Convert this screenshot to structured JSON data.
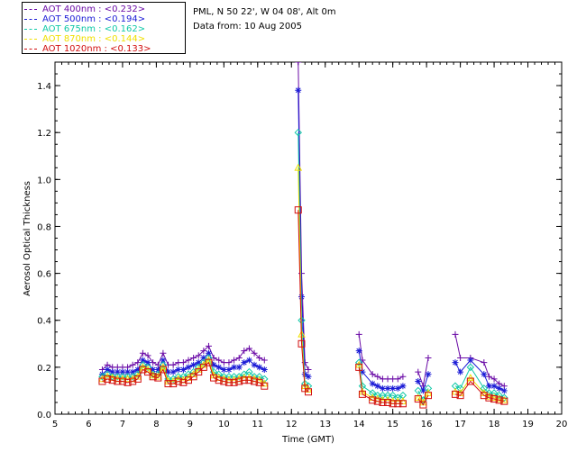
{
  "legend": [
    {
      "label": "AOT  400nm : <0.232>",
      "color": "#6a0aa6"
    },
    {
      "label": "AOT  500nm : <0.194>",
      "color": "#1b1bd6"
    },
    {
      "label": "AOT  675nm : <0.162>",
      "color": "#10c8a8"
    },
    {
      "label": "AOT  870nm : <0.144>",
      "color": "#f0e000"
    },
    {
      "label": "AOT 1020nm : <0.133>",
      "color": "#d21010"
    }
  ],
  "info": {
    "station": "PML, N 50 22', W 04 08', Alt 0m",
    "date": "Data from: 10 Aug 2005"
  },
  "chart_data": {
    "type": "scatter",
    "xlabel": "Time (GMT)",
    "ylabel": "Aerosol Optical Thickness",
    "xlim": [
      5,
      20
    ],
    "ylim": [
      0,
      1.5
    ],
    "xticks": [
      5,
      6,
      7,
      8,
      9,
      10,
      11,
      12,
      13,
      14,
      15,
      16,
      17,
      18,
      19,
      20
    ],
    "yticks": [
      0.0,
      0.2,
      0.4,
      0.6,
      0.8,
      1.0,
      1.2,
      1.4
    ],
    "grid": false,
    "legend_position": "top-left",
    "series": [
      {
        "wavelength": "400nm",
        "marker": "plus",
        "color": "#6a0aa6",
        "x": [
          6.4,
          6.55,
          6.7,
          6.85,
          7.0,
          7.15,
          7.3,
          7.45,
          7.6,
          7.75,
          7.9,
          8.05,
          8.2,
          8.35,
          8.5,
          8.65,
          8.8,
          8.95,
          9.1,
          9.25,
          9.4,
          9.55,
          9.7,
          9.85,
          10.0,
          10.15,
          10.3,
          10.45,
          10.6,
          10.75,
          10.9,
          11.05,
          11.2,
          12.2,
          12.3,
          12.4,
          12.5,
          14.0,
          14.1,
          14.4,
          14.55,
          14.7,
          14.85,
          15.0,
          15.15,
          15.3,
          15.75,
          15.9,
          16.05,
          16.85,
          17.0,
          17.3,
          17.7,
          17.85,
          18.0,
          18.15,
          18.3
        ],
        "y": [
          0.19,
          0.21,
          0.2,
          0.2,
          0.2,
          0.2,
          0.21,
          0.22,
          0.26,
          0.25,
          0.22,
          0.21,
          0.26,
          0.21,
          0.21,
          0.22,
          0.22,
          0.23,
          0.24,
          0.25,
          0.27,
          0.29,
          0.24,
          0.23,
          0.22,
          0.22,
          0.23,
          0.24,
          0.27,
          0.28,
          0.26,
          0.24,
          0.23,
          1.5,
          0.6,
          0.22,
          0.19,
          0.34,
          0.23,
          0.17,
          0.16,
          0.15,
          0.15,
          0.15,
          0.15,
          0.16,
          0.18,
          0.12,
          0.24,
          0.34,
          0.24,
          0.24,
          0.22,
          0.16,
          0.15,
          0.13,
          0.12
        ]
      },
      {
        "wavelength": "500nm",
        "marker": "asterisk",
        "color": "#1b1bd6",
        "x": [
          6.4,
          6.55,
          6.7,
          6.85,
          7.0,
          7.15,
          7.3,
          7.45,
          7.6,
          7.75,
          7.9,
          8.05,
          8.2,
          8.35,
          8.5,
          8.65,
          8.8,
          8.95,
          9.1,
          9.25,
          9.4,
          9.55,
          9.7,
          9.85,
          10.0,
          10.15,
          10.3,
          10.45,
          10.6,
          10.75,
          10.9,
          11.05,
          11.2,
          12.2,
          12.3,
          12.4,
          12.5,
          14.0,
          14.1,
          14.4,
          14.55,
          14.7,
          14.85,
          15.0,
          15.15,
          15.3,
          15.75,
          15.9,
          16.05,
          16.85,
          17.0,
          17.3,
          17.7,
          17.85,
          18.0,
          18.15,
          18.3
        ],
        "y": [
          0.17,
          0.19,
          0.18,
          0.18,
          0.18,
          0.18,
          0.18,
          0.19,
          0.23,
          0.22,
          0.19,
          0.19,
          0.23,
          0.18,
          0.18,
          0.19,
          0.19,
          0.2,
          0.21,
          0.22,
          0.24,
          0.26,
          0.21,
          0.2,
          0.19,
          0.19,
          0.2,
          0.2,
          0.22,
          0.23,
          0.21,
          0.2,
          0.19,
          1.38,
          0.5,
          0.17,
          0.16,
          0.27,
          0.18,
          0.13,
          0.12,
          0.11,
          0.11,
          0.11,
          0.11,
          0.12,
          0.14,
          0.1,
          0.17,
          0.22,
          0.18,
          0.23,
          0.17,
          0.12,
          0.12,
          0.11,
          0.1
        ]
      },
      {
        "wavelength": "675nm",
        "marker": "diamond",
        "color": "#10c8a8",
        "x": [
          6.4,
          6.55,
          6.7,
          6.85,
          7.0,
          7.15,
          7.3,
          7.45,
          7.6,
          7.75,
          7.9,
          8.05,
          8.2,
          8.35,
          8.5,
          8.65,
          8.8,
          8.95,
          9.1,
          9.25,
          9.4,
          9.55,
          9.7,
          9.85,
          10.0,
          10.15,
          10.3,
          10.45,
          10.6,
          10.75,
          10.9,
          11.05,
          11.2,
          12.2,
          12.3,
          12.4,
          12.5,
          14.0,
          14.1,
          14.4,
          14.55,
          14.7,
          14.85,
          15.0,
          15.15,
          15.3,
          15.75,
          15.9,
          16.05,
          16.85,
          17.0,
          17.3,
          17.7,
          17.85,
          18.0,
          18.15,
          18.3
        ],
        "y": [
          0.16,
          0.17,
          0.16,
          0.16,
          0.16,
          0.16,
          0.16,
          0.17,
          0.21,
          0.2,
          0.17,
          0.17,
          0.21,
          0.15,
          0.15,
          0.16,
          0.16,
          0.17,
          0.18,
          0.2,
          0.22,
          0.24,
          0.18,
          0.17,
          0.16,
          0.16,
          0.16,
          0.16,
          0.17,
          0.18,
          0.16,
          0.16,
          0.15,
          1.2,
          0.4,
          0.13,
          0.12,
          0.22,
          0.12,
          0.09,
          0.08,
          0.08,
          0.08,
          0.08,
          0.07,
          0.08,
          0.1,
          0.06,
          0.11,
          0.12,
          0.11,
          0.2,
          0.11,
          0.09,
          0.09,
          0.08,
          0.07
        ]
      },
      {
        "wavelength": "870nm",
        "marker": "triangle",
        "color": "#f0e000",
        "x": [
          6.4,
          6.55,
          6.7,
          6.85,
          7.0,
          7.15,
          7.3,
          7.45,
          7.6,
          7.75,
          7.9,
          8.05,
          8.2,
          8.35,
          8.5,
          8.65,
          8.8,
          8.95,
          9.1,
          9.25,
          9.4,
          9.55,
          9.7,
          9.85,
          10.0,
          10.15,
          10.3,
          10.45,
          10.6,
          10.75,
          10.9,
          11.05,
          11.2,
          12.2,
          12.3,
          12.4,
          12.5,
          14.0,
          14.1,
          14.4,
          14.55,
          14.7,
          14.85,
          15.0,
          15.15,
          15.3,
          15.75,
          15.9,
          16.05,
          16.85,
          17.0,
          17.3,
          17.7,
          17.85,
          18.0,
          18.15,
          18.3
        ],
        "y": [
          0.15,
          0.16,
          0.155,
          0.15,
          0.15,
          0.15,
          0.15,
          0.16,
          0.2,
          0.19,
          0.165,
          0.16,
          0.2,
          0.14,
          0.14,
          0.15,
          0.145,
          0.155,
          0.17,
          0.19,
          0.21,
          0.23,
          0.165,
          0.155,
          0.15,
          0.145,
          0.145,
          0.15,
          0.155,
          0.155,
          0.15,
          0.145,
          0.13,
          1.05,
          0.34,
          0.12,
          0.105,
          0.21,
          0.095,
          0.07,
          0.065,
          0.06,
          0.06,
          0.055,
          0.055,
          0.055,
          0.07,
          0.05,
          0.09,
          0.095,
          0.09,
          0.155,
          0.09,
          0.075,
          0.07,
          0.065,
          0.06
        ]
      },
      {
        "wavelength": "1020nm",
        "marker": "square",
        "color": "#d21010",
        "x": [
          6.4,
          6.55,
          6.7,
          6.85,
          7.0,
          7.15,
          7.3,
          7.45,
          7.6,
          7.75,
          7.9,
          8.05,
          8.2,
          8.35,
          8.5,
          8.65,
          8.8,
          8.95,
          9.1,
          9.25,
          9.4,
          9.55,
          9.7,
          9.85,
          10.0,
          10.15,
          10.3,
          10.45,
          10.6,
          10.75,
          10.9,
          11.05,
          11.2,
          12.2,
          12.3,
          12.4,
          12.5,
          14.0,
          14.1,
          14.4,
          14.55,
          14.7,
          14.85,
          15.0,
          15.15,
          15.3,
          15.75,
          15.9,
          16.05,
          16.85,
          17.0,
          17.3,
          17.7,
          17.85,
          18.0,
          18.15,
          18.3
        ],
        "y": [
          0.14,
          0.15,
          0.145,
          0.14,
          0.14,
          0.135,
          0.14,
          0.15,
          0.19,
          0.18,
          0.16,
          0.155,
          0.19,
          0.13,
          0.13,
          0.14,
          0.135,
          0.145,
          0.16,
          0.18,
          0.2,
          0.22,
          0.155,
          0.145,
          0.14,
          0.135,
          0.135,
          0.14,
          0.145,
          0.145,
          0.14,
          0.135,
          0.12,
          0.87,
          0.3,
          0.11,
          0.095,
          0.2,
          0.085,
          0.06,
          0.055,
          0.05,
          0.05,
          0.045,
          0.045,
          0.045,
          0.065,
          0.04,
          0.08,
          0.085,
          0.08,
          0.14,
          0.08,
          0.07,
          0.065,
          0.06,
          0.055
        ]
      }
    ]
  }
}
